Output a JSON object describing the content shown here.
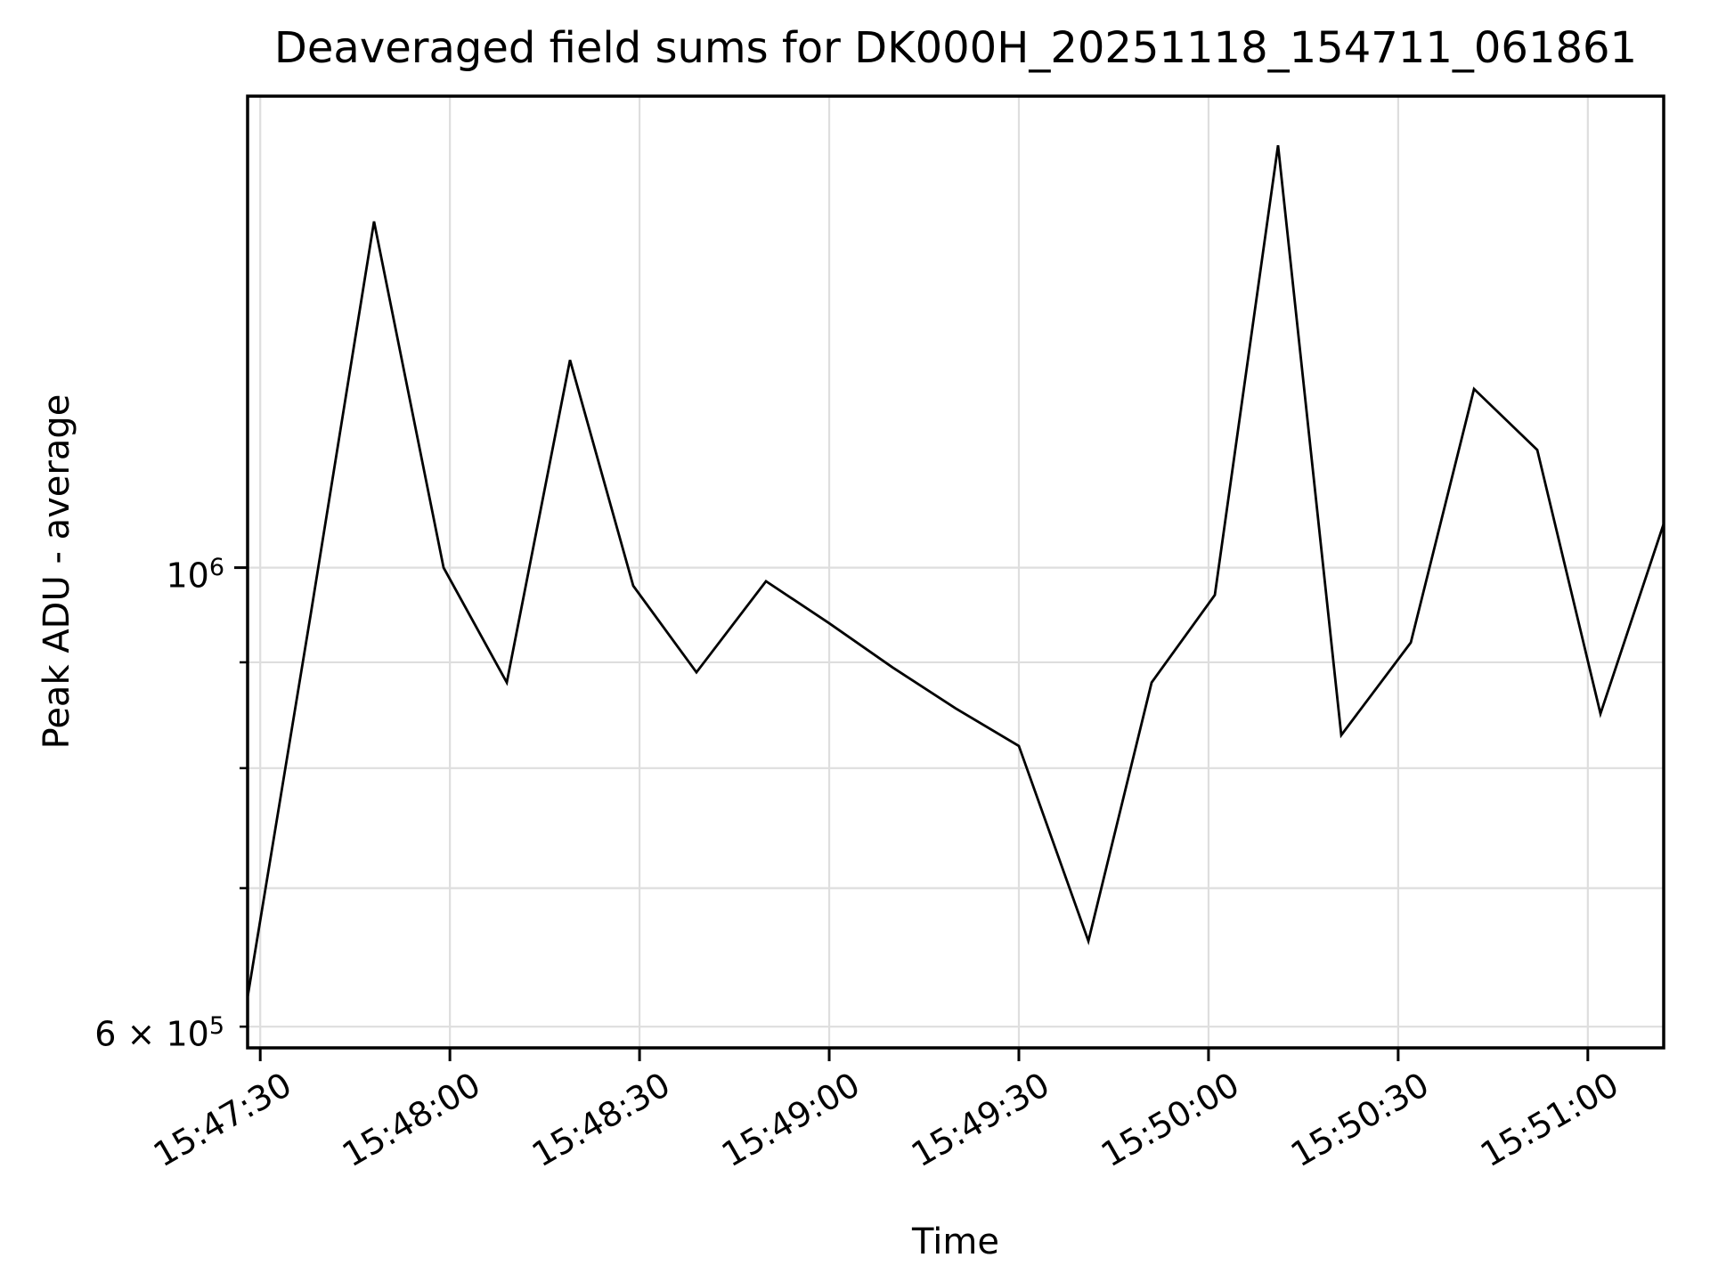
{
  "chart_data": {
    "type": "line",
    "title": "Deaveraged field sums for DK000H_20251118_154711_061861",
    "xlabel": "Time",
    "ylabel": "Peak ADU - average",
    "yscale": "log",
    "line_color": "#000000",
    "grid": true,
    "legend": "none",
    "x": [
      "15:47:28",
      "15:47:38",
      "15:47:48",
      "15:47:59",
      "15:48:09",
      "15:48:19",
      "15:48:29",
      "15:48:39",
      "15:48:50",
      "15:49:00",
      "15:49:10",
      "15:49:20",
      "15:49:30",
      "15:49:41",
      "15:49:51",
      "15:50:01",
      "15:50:11",
      "15:50:21",
      "15:50:32",
      "15:50:42",
      "15:50:52",
      "15:51:02",
      "15:51:12"
    ],
    "y": [
      620000,
      950000,
      1470000,
      1000000,
      880000,
      1260000,
      980000,
      890000,
      985000,
      940000,
      895000,
      855000,
      820000,
      660000,
      880000,
      970000,
      1600000,
      830000,
      920000,
      1220000,
      1140000,
      850000,
      1050000
    ],
    "x_tick_labels": [
      "15:47:30",
      "15:48:00",
      "15:48:30",
      "15:49:00",
      "15:49:30",
      "15:50:00",
      "15:50:30",
      "15:51:00"
    ],
    "x_tick_seconds_from_start": [
      2,
      32,
      62,
      92,
      122,
      152,
      182,
      212
    ],
    "y_ticks": [
      {
        "base": "10",
        "exp": "6",
        "value": 1000000,
        "major": true
      },
      {
        "base": "6 × 10",
        "exp": "5",
        "value": 600000,
        "major": false
      }
    ],
    "y_gridline_values": [
      1000000,
      900000,
      800000,
      700000,
      600000
    ],
    "ylim": [
      586000,
      1690000
    ],
    "x_span_seconds": 224
  }
}
